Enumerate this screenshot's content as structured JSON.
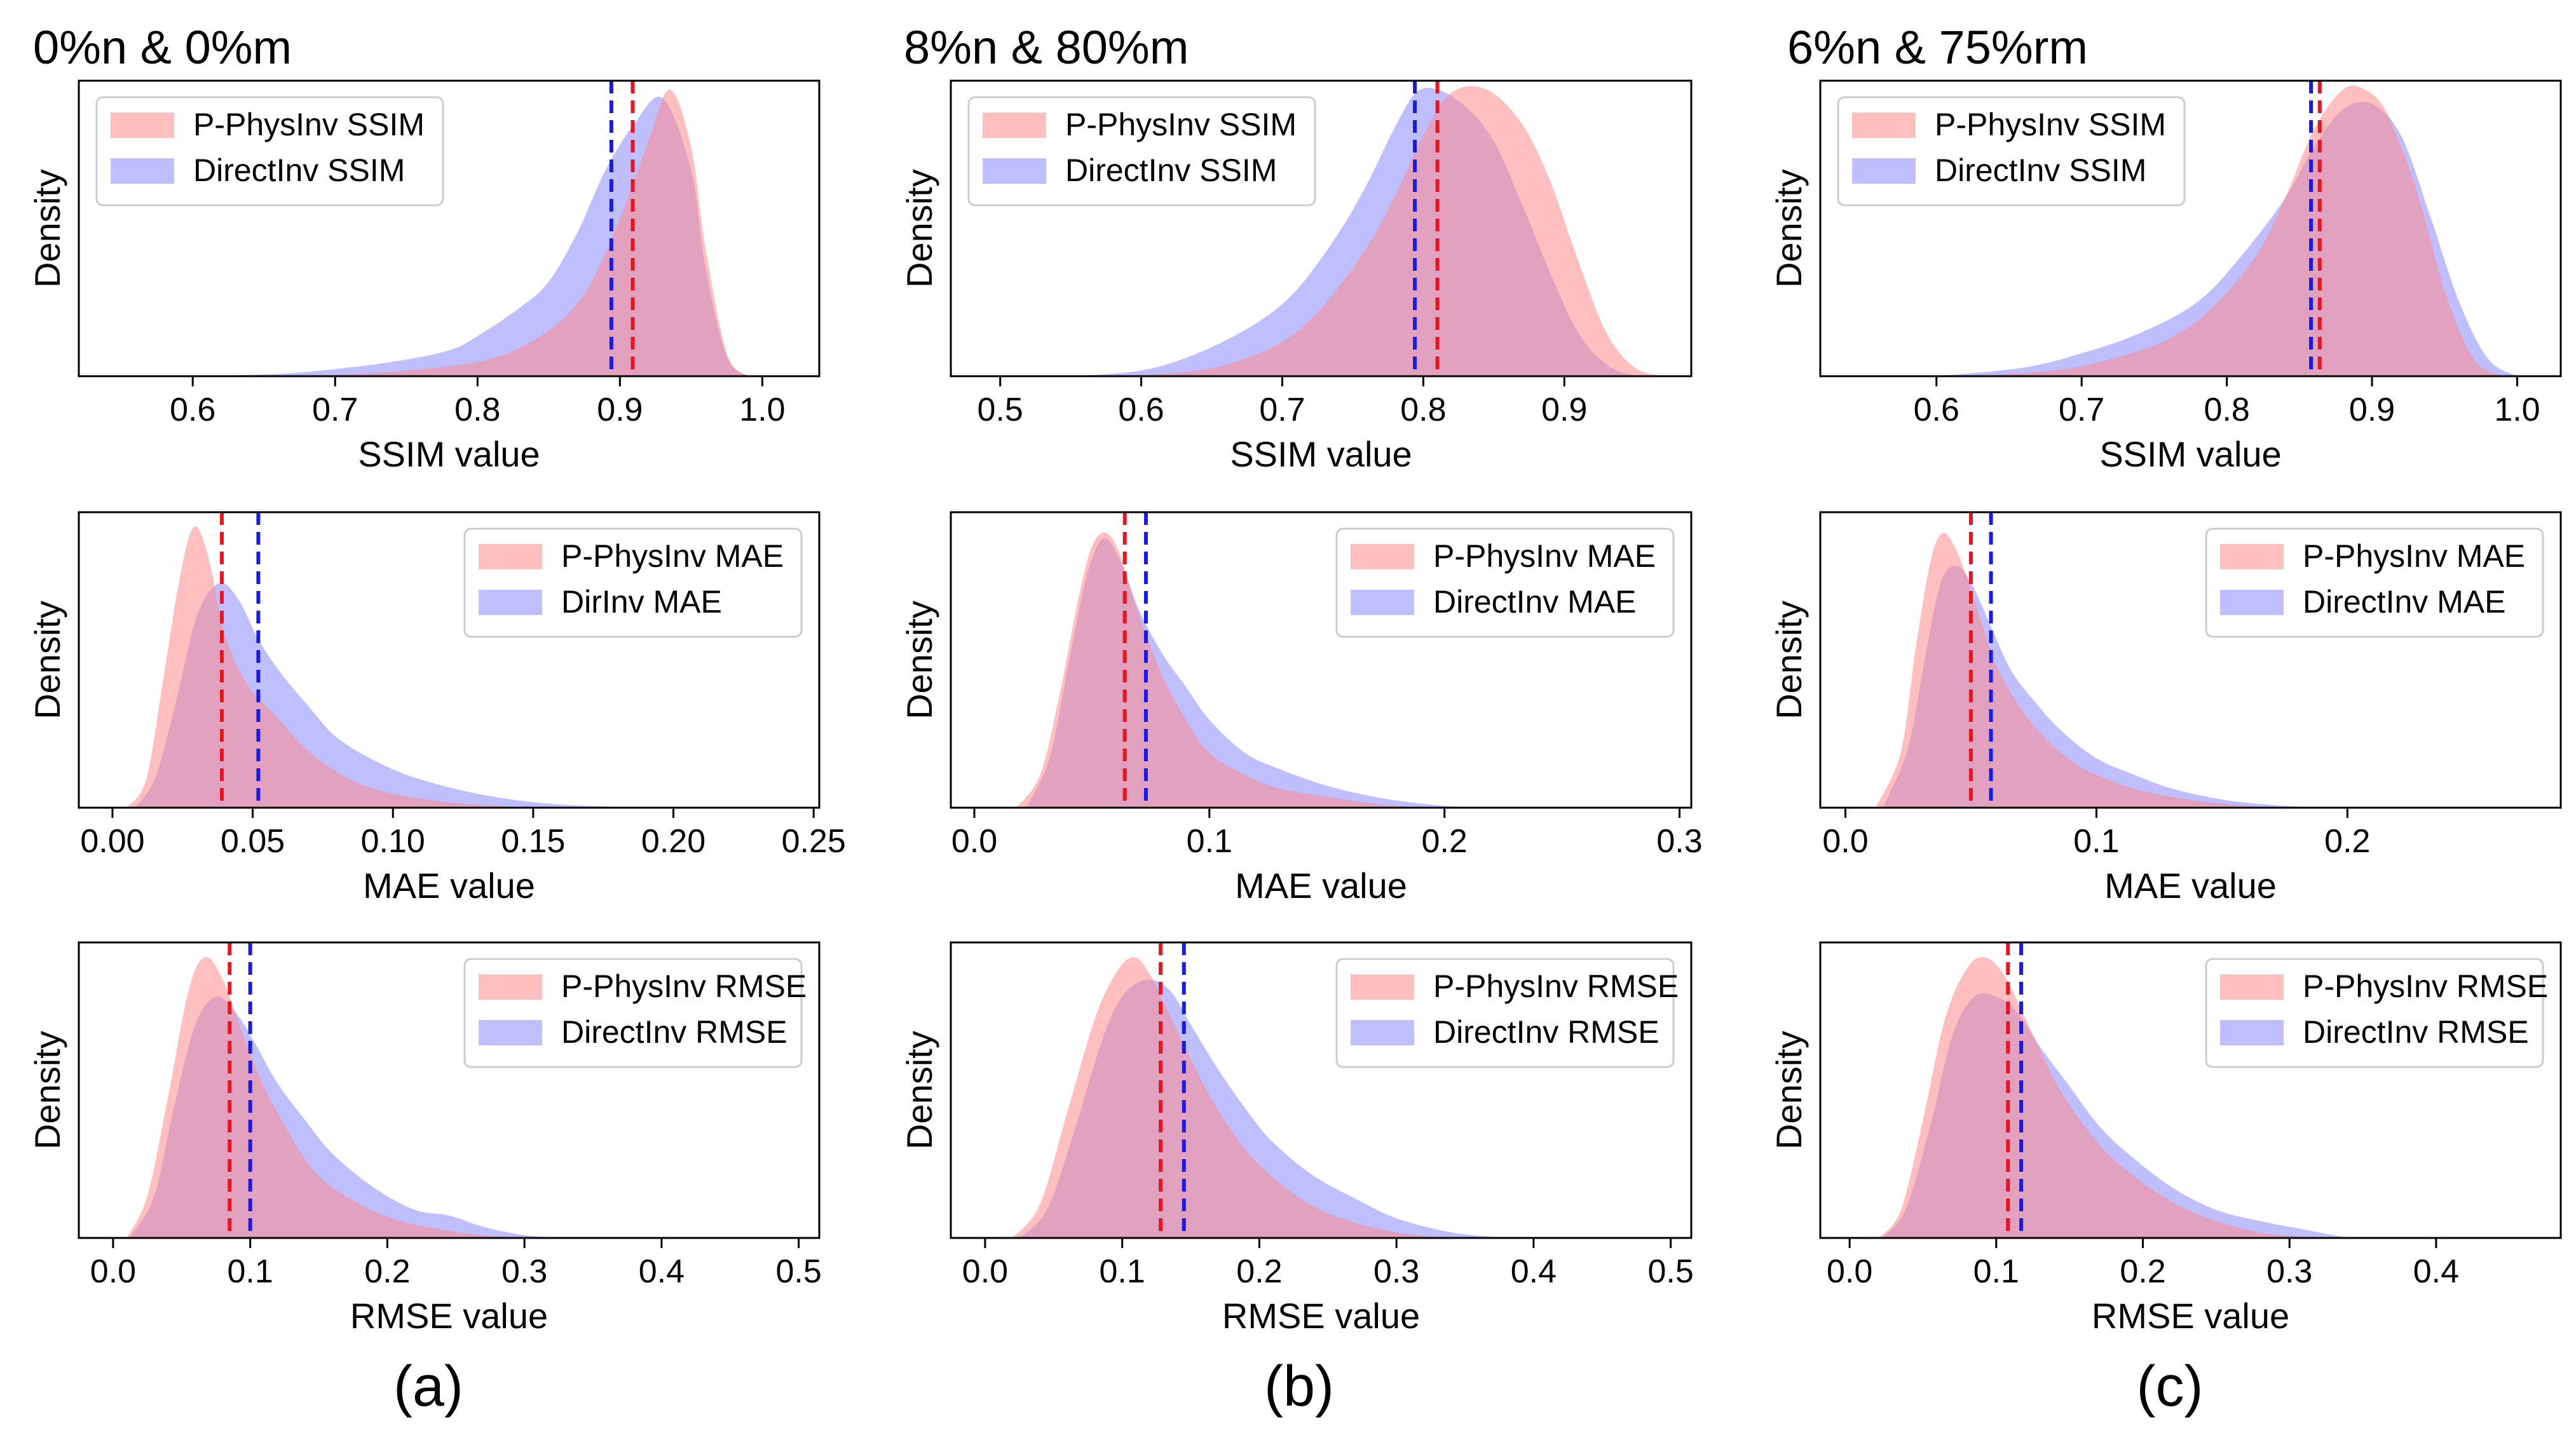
{
  "colors": {
    "red": "#ff8a8a",
    "blue": "#8a8aff",
    "red_line": "#e8141e",
    "blue_line": "#1a1ae6"
  },
  "columns": [
    {
      "title": "0%n & 0%m",
      "caption": "(a)"
    },
    {
      "title": "8%n & 80%m",
      "caption": "(b)"
    },
    {
      "title": "6%n & 75%rm",
      "caption": "(c)"
    }
  ],
  "chart_data": [
    {
      "id": "a-ssim",
      "type": "area",
      "col": 0,
      "row": 0,
      "xlabel": "SSIM value",
      "ylabel": "Density",
      "xlim": [
        0.52,
        1.04
      ],
      "ticks": [
        0.6,
        0.7,
        0.8,
        0.9,
        1.0
      ],
      "tick_labels": [
        "0.6",
        "0.7",
        "0.8",
        "0.9",
        "1.0"
      ],
      "legend_pos": "top-left",
      "series": [
        {
          "name": "P-PhysInv SSIM",
          "color": "red",
          "peak": 0.97,
          "mean": 0.909,
          "x": [
            0.62,
            0.7,
            0.75,
            0.8,
            0.83,
            0.86,
            0.88,
            0.9,
            0.92,
            0.935,
            0.95,
            0.96,
            0.975,
            0.99
          ],
          "y": [
            0,
            0.005,
            0.02,
            0.05,
            0.1,
            0.2,
            0.33,
            0.55,
            0.82,
            1.0,
            0.8,
            0.45,
            0.08,
            0
          ]
        },
        {
          "name": "DirectInv SSIM",
          "color": "blue",
          "peak": 0.97,
          "mean": 0.894,
          "x": [
            0.6,
            0.66,
            0.7,
            0.74,
            0.78,
            0.8,
            0.83,
            0.85,
            0.87,
            0.89,
            0.91,
            0.93,
            0.95,
            0.96,
            0.975,
            0.99
          ],
          "y": [
            0,
            0.008,
            0.025,
            0.05,
            0.09,
            0.14,
            0.24,
            0.33,
            0.5,
            0.72,
            0.88,
            0.97,
            0.72,
            0.38,
            0.07,
            0
          ]
        }
      ]
    },
    {
      "id": "a-mae",
      "type": "area",
      "col": 0,
      "row": 1,
      "xlabel": "MAE value",
      "ylabel": "Density",
      "xlim": [
        -0.012,
        0.252
      ],
      "ticks": [
        0,
        0.05,
        0.1,
        0.15,
        0.2,
        0.25
      ],
      "tick_labels": [
        "0.00",
        "0.05",
        "0.10",
        "0.15",
        "0.20",
        "0.25"
      ],
      "legend_pos": "top-right",
      "series": [
        {
          "name": "P-PhysInv MAE",
          "color": "red",
          "peak": 0.95,
          "mean": 0.039,
          "x": [
            0.005,
            0.012,
            0.018,
            0.024,
            0.029,
            0.034,
            0.04,
            0.048,
            0.058,
            0.07,
            0.085,
            0.1,
            0.12,
            0.14,
            0.16
          ],
          "y": [
            0,
            0.1,
            0.45,
            0.82,
            1.0,
            0.9,
            0.62,
            0.44,
            0.33,
            0.2,
            0.1,
            0.05,
            0.02,
            0.005,
            0
          ]
        },
        {
          "name": "DirInv MAE",
          "color": "blue",
          "peak": 0.95,
          "mean": 0.052,
          "x": [
            0.008,
            0.015,
            0.022,
            0.03,
            0.038,
            0.045,
            0.052,
            0.06,
            0.07,
            0.08,
            0.095,
            0.11,
            0.13,
            0.15,
            0.17,
            0.2
          ],
          "y": [
            0,
            0.1,
            0.35,
            0.68,
            0.8,
            0.74,
            0.6,
            0.48,
            0.36,
            0.25,
            0.16,
            0.1,
            0.05,
            0.02,
            0.006,
            0
          ]
        }
      ]
    },
    {
      "id": "a-rmse",
      "type": "area",
      "col": 0,
      "row": 2,
      "xlabel": "RMSE value",
      "ylabel": "Density",
      "xlim": [
        -0.025,
        0.515
      ],
      "ticks": [
        0,
        0.1,
        0.2,
        0.3,
        0.4,
        0.5
      ],
      "tick_labels": [
        "0.0",
        "0.1",
        "0.2",
        "0.3",
        "0.4",
        "0.5"
      ],
      "legend_pos": "top-right",
      "series": [
        {
          "name": "P-PhysInv RMSE",
          "color": "red",
          "peak": 0.95,
          "mean": 0.085,
          "x": [
            0.01,
            0.025,
            0.04,
            0.055,
            0.067,
            0.08,
            0.095,
            0.11,
            0.13,
            0.15,
            0.18,
            0.21,
            0.24,
            0.27,
            0.3
          ],
          "y": [
            0,
            0.15,
            0.5,
            0.88,
            1.0,
            0.92,
            0.72,
            0.54,
            0.36,
            0.22,
            0.12,
            0.06,
            0.03,
            0.01,
            0
          ]
        },
        {
          "name": "DirectInv RMSE",
          "color": "blue",
          "peak": 0.95,
          "mean": 0.1,
          "x": [
            0.012,
            0.03,
            0.045,
            0.06,
            0.075,
            0.09,
            0.105,
            0.12,
            0.14,
            0.16,
            0.19,
            0.22,
            0.245,
            0.27,
            0.3,
            0.33
          ],
          "y": [
            0,
            0.15,
            0.48,
            0.76,
            0.86,
            0.8,
            0.68,
            0.55,
            0.42,
            0.3,
            0.18,
            0.1,
            0.08,
            0.04,
            0.01,
            0
          ]
        }
      ]
    },
    {
      "id": "b-ssim",
      "type": "area",
      "col": 1,
      "row": 0,
      "xlabel": "SSIM value",
      "ylabel": "Density",
      "xlim": [
        0.465,
        0.99
      ],
      "ticks": [
        0.5,
        0.6,
        0.7,
        0.8,
        0.9
      ],
      "tick_labels": [
        "0.5",
        "0.6",
        "0.7",
        "0.8",
        "0.9"
      ],
      "legend_pos": "top-left",
      "series": [
        {
          "name": "P-PhysInv SSIM",
          "color": "red",
          "peak": 0.97,
          "mean": 0.81,
          "x": [
            0.56,
            0.62,
            0.66,
            0.7,
            0.73,
            0.76,
            0.78,
            0.8,
            0.82,
            0.845,
            0.87,
            0.89,
            0.91,
            0.93,
            0.95,
            0.97
          ],
          "y": [
            0,
            0.01,
            0.04,
            0.12,
            0.25,
            0.45,
            0.63,
            0.84,
            0.99,
            1.0,
            0.88,
            0.68,
            0.4,
            0.15,
            0.03,
            0
          ]
        },
        {
          "name": "DirectInv SSIM",
          "color": "blue",
          "peak": 0.97,
          "mean": 0.794,
          "x": [
            0.55,
            0.6,
            0.64,
            0.68,
            0.71,
            0.74,
            0.76,
            0.78,
            0.795,
            0.81,
            0.83,
            0.85,
            0.87,
            0.89,
            0.91,
            0.93,
            0.95
          ],
          "y": [
            0,
            0.02,
            0.08,
            0.18,
            0.3,
            0.5,
            0.67,
            0.87,
            0.99,
            1.0,
            0.94,
            0.82,
            0.6,
            0.36,
            0.15,
            0.04,
            0
          ]
        }
      ]
    },
    {
      "id": "b-mae",
      "type": "area",
      "col": 1,
      "row": 1,
      "xlabel": "MAE value",
      "ylabel": "Density",
      "xlim": [
        -0.01,
        0.305
      ],
      "ticks": [
        0,
        0.1,
        0.2,
        0.3
      ],
      "tick_labels": [
        "0.0",
        "0.1",
        "0.2",
        "0.3"
      ],
      "legend_pos": "top-right",
      "series": [
        {
          "name": "P-PhysInv MAE",
          "color": "red",
          "peak": 0.93,
          "mean": 0.064,
          "x": [
            0.018,
            0.028,
            0.036,
            0.044,
            0.05,
            0.056,
            0.062,
            0.07,
            0.08,
            0.09,
            0.1,
            0.115,
            0.13,
            0.15,
            0.17,
            0.19
          ],
          "y": [
            0,
            0.12,
            0.4,
            0.75,
            0.95,
            1.0,
            0.92,
            0.7,
            0.48,
            0.32,
            0.2,
            0.12,
            0.07,
            0.04,
            0.015,
            0
          ]
        },
        {
          "name": "DirectInv MAE",
          "color": "blue",
          "peak": 0.93,
          "mean": 0.073,
          "x": [
            0.022,
            0.032,
            0.04,
            0.048,
            0.055,
            0.062,
            0.07,
            0.08,
            0.09,
            0.1,
            0.115,
            0.13,
            0.15,
            0.17,
            0.19,
            0.21
          ],
          "y": [
            0,
            0.18,
            0.52,
            0.85,
            0.98,
            0.9,
            0.72,
            0.56,
            0.44,
            0.32,
            0.2,
            0.14,
            0.08,
            0.04,
            0.015,
            0
          ]
        }
      ]
    },
    {
      "id": "b-rmse",
      "type": "area",
      "col": 1,
      "row": 2,
      "xlabel": "RMSE value",
      "ylabel": "Density",
      "xlim": [
        -0.025,
        0.515
      ],
      "ticks": [
        0,
        0.1,
        0.2,
        0.3,
        0.4,
        0.5
      ],
      "tick_labels": [
        "0.0",
        "0.1",
        "0.2",
        "0.3",
        "0.4",
        "0.5"
      ],
      "legend_pos": "top-right",
      "series": [
        {
          "name": "P-PhysInv RMSE",
          "color": "red",
          "peak": 0.95,
          "mean": 0.128,
          "x": [
            0.02,
            0.04,
            0.06,
            0.08,
            0.095,
            0.108,
            0.12,
            0.14,
            0.16,
            0.18,
            0.2,
            0.23,
            0.26,
            0.3,
            0.34
          ],
          "y": [
            0,
            0.12,
            0.45,
            0.78,
            0.94,
            1.0,
            0.94,
            0.74,
            0.54,
            0.38,
            0.26,
            0.14,
            0.07,
            0.02,
            0
          ]
        },
        {
          "name": "DirectInv RMSE",
          "color": "blue",
          "peak": 0.95,
          "mean": 0.145,
          "x": [
            0.025,
            0.045,
            0.065,
            0.085,
            0.1,
            0.118,
            0.135,
            0.15,
            0.17,
            0.19,
            0.21,
            0.24,
            0.27,
            0.3,
            0.34,
            0.38
          ],
          "y": [
            0,
            0.1,
            0.38,
            0.7,
            0.86,
            0.92,
            0.88,
            0.76,
            0.6,
            0.46,
            0.34,
            0.22,
            0.14,
            0.07,
            0.02,
            0
          ]
        }
      ]
    },
    {
      "id": "c-ssim",
      "type": "area",
      "col": 2,
      "row": 0,
      "xlabel": "SSIM value",
      "ylabel": "Density",
      "xlim": [
        0.52,
        1.03
      ],
      "ticks": [
        0.6,
        0.7,
        0.8,
        0.9,
        1.0
      ],
      "tick_labels": [
        "0.6",
        "0.7",
        "0.8",
        "0.9",
        "1.0"
      ],
      "legend_pos": "top-left",
      "series": [
        {
          "name": "P-PhysInv SSIM",
          "color": "red",
          "peak": 0.97,
          "mean": 0.864,
          "x": [
            0.62,
            0.68,
            0.72,
            0.76,
            0.79,
            0.82,
            0.84,
            0.86,
            0.88,
            0.895,
            0.91,
            0.93,
            0.95,
            0.97,
            0.99
          ],
          "y": [
            0,
            0.02,
            0.06,
            0.13,
            0.24,
            0.42,
            0.62,
            0.86,
            1.0,
            1.0,
            0.92,
            0.66,
            0.3,
            0.06,
            0
          ]
        },
        {
          "name": "DirectInv SSIM",
          "color": "blue",
          "peak": 0.97,
          "mean": 0.858,
          "x": [
            0.6,
            0.66,
            0.7,
            0.74,
            0.78,
            0.81,
            0.84,
            0.86,
            0.88,
            0.9,
            0.92,
            0.94,
            0.96,
            0.98,
            1.0
          ],
          "y": [
            0,
            0.03,
            0.08,
            0.15,
            0.26,
            0.42,
            0.62,
            0.8,
            0.93,
            0.95,
            0.84,
            0.56,
            0.26,
            0.06,
            0
          ]
        }
      ]
    },
    {
      "id": "c-mae",
      "type": "area",
      "col": 2,
      "row": 1,
      "xlabel": "MAE value",
      "ylabel": "Density",
      "xlim": [
        -0.01,
        0.285
      ],
      "ticks": [
        0,
        0.1,
        0.2
      ],
      "tick_labels": [
        "0.0",
        "0.1",
        "0.2"
      ],
      "legend_pos": "top-right",
      "series": [
        {
          "name": "P-PhysInv MAE",
          "color": "red",
          "peak": 0.93,
          "mean": 0.05,
          "x": [
            0.012,
            0.022,
            0.028,
            0.034,
            0.039,
            0.045,
            0.052,
            0.06,
            0.07,
            0.08,
            0.09,
            0.1,
            0.115,
            0.13,
            0.15,
            0.17
          ],
          "y": [
            0,
            0.2,
            0.58,
            0.9,
            1.0,
            0.92,
            0.74,
            0.52,
            0.36,
            0.25,
            0.17,
            0.12,
            0.07,
            0.04,
            0.015,
            0
          ]
        },
        {
          "name": "DirectInv MAE",
          "color": "blue",
          "peak": 0.93,
          "mean": 0.058,
          "x": [
            0.015,
            0.025,
            0.032,
            0.038,
            0.044,
            0.05,
            0.058,
            0.066,
            0.076,
            0.086,
            0.1,
            0.115,
            0.13,
            0.15,
            0.17,
            0.19
          ],
          "y": [
            0,
            0.22,
            0.56,
            0.82,
            0.88,
            0.82,
            0.66,
            0.5,
            0.38,
            0.28,
            0.18,
            0.12,
            0.07,
            0.03,
            0.01,
            0
          ]
        }
      ]
    },
    {
      "id": "c-rmse",
      "type": "area",
      "col": 2,
      "row": 2,
      "xlabel": "RMSE value",
      "ylabel": "Density",
      "xlim": [
        -0.02,
        0.485
      ],
      "ticks": [
        0,
        0.1,
        0.2,
        0.3,
        0.4
      ],
      "tick_labels": [
        "0.0",
        "0.1",
        "0.2",
        "0.3",
        "0.4"
      ],
      "legend_pos": "top-right",
      "series": [
        {
          "name": "P-PhysInv RMSE",
          "color": "red",
          "peak": 0.95,
          "mean": 0.108,
          "x": [
            0.02,
            0.035,
            0.05,
            0.065,
            0.08,
            0.092,
            0.105,
            0.12,
            0.14,
            0.16,
            0.18,
            0.21,
            0.24,
            0.28,
            0.32
          ],
          "y": [
            0,
            0.1,
            0.42,
            0.78,
            0.96,
            1.0,
            0.94,
            0.78,
            0.56,
            0.4,
            0.28,
            0.16,
            0.08,
            0.02,
            0
          ]
        },
        {
          "name": "DirectInv RMSE",
          "color": "blue",
          "peak": 0.95,
          "mean": 0.117,
          "x": [
            0.022,
            0.038,
            0.055,
            0.07,
            0.085,
            0.1,
            0.115,
            0.13,
            0.15,
            0.17,
            0.19,
            0.22,
            0.25,
            0.28,
            0.31,
            0.34
          ],
          "y": [
            0,
            0.1,
            0.4,
            0.72,
            0.86,
            0.86,
            0.8,
            0.68,
            0.54,
            0.4,
            0.3,
            0.18,
            0.1,
            0.06,
            0.03,
            0
          ]
        }
      ]
    }
  ]
}
